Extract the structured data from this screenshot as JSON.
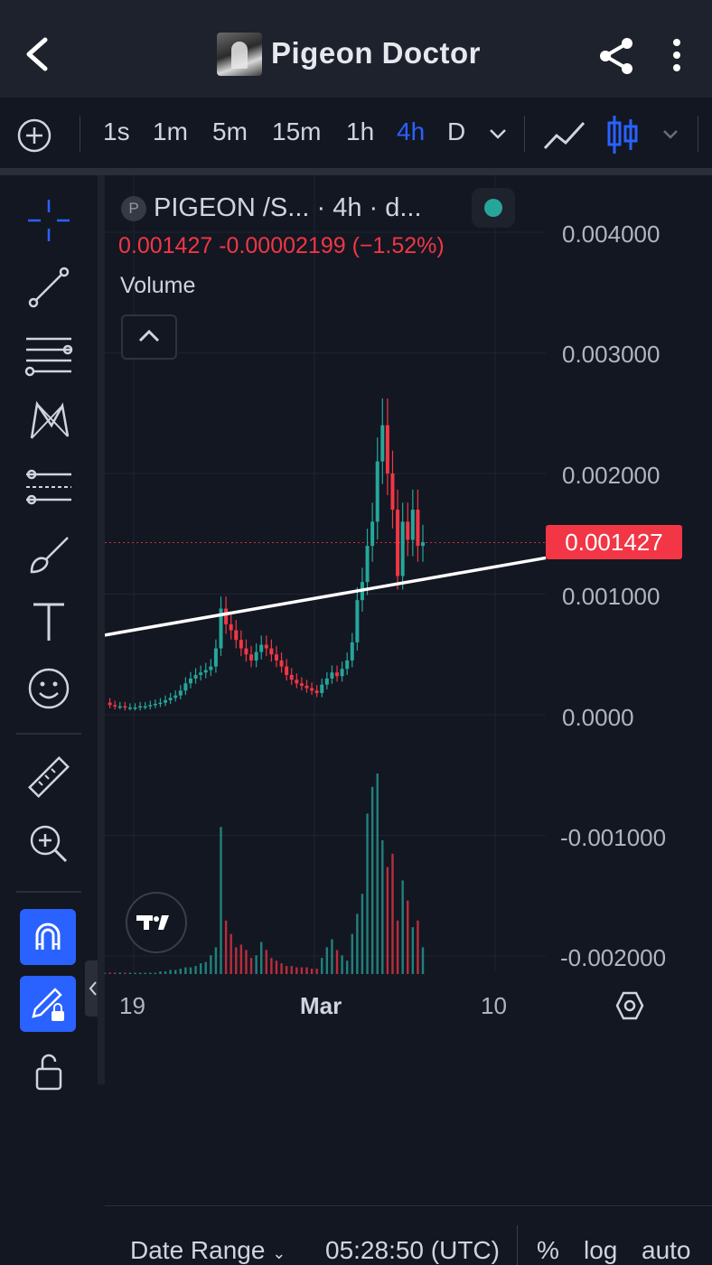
{
  "header": {
    "title": "Pigeon Doctor"
  },
  "toolbar": {
    "timeframes": [
      "1s",
      "1m",
      "5m",
      "15m",
      "1h",
      "4h",
      "D"
    ],
    "active_timeframe": "4h"
  },
  "legend": {
    "symbol_initial": "P",
    "symbol": "PIGEON /S... · 4h · d...",
    "ohlc": "0.001427  -0.00002199 (−1.52%)",
    "volume_label": "Volume"
  },
  "price_axis": {
    "ticks": [
      "0.004000",
      "0.003000",
      "0.002000",
      "0.001000",
      "0.0000",
      "-0.001000",
      "-0.002000"
    ],
    "last_price": "0.001427"
  },
  "time_axis": {
    "ticks": [
      "19",
      "Mar",
      "10"
    ]
  },
  "bottom_bar": {
    "date_range": "Date Range",
    "clock": "05:28:50 (UTC)",
    "percent": "%",
    "log": "log",
    "auto": "auto"
  },
  "colors": {
    "up": "#26a69a",
    "down": "#f23645",
    "accent": "#2962ff",
    "background": "#131722"
  },
  "chart_data": {
    "type": "candlestick",
    "ylim": [
      -0.0021,
      0.0043
    ],
    "y_ticks": [
      0.004,
      0.003,
      0.002,
      0.001,
      0.0,
      -0.001,
      -0.002
    ],
    "last_price": 0.001427,
    "price_path": [
      0.0001,
      8e-05,
      7e-05,
      7e-05,
      6e-05,
      6e-05,
      6e-05,
      7e-05,
      7e-05,
      8e-05,
      9e-05,
      0.0001,
      0.00012,
      0.00014,
      0.00016,
      0.0002,
      0.00026,
      0.0003,
      0.00033,
      0.00035,
      0.00037,
      0.0004,
      0.00055,
      0.00088,
      0.00075,
      0.0007,
      0.00062,
      0.00055,
      0.0005,
      0.00045,
      0.00052,
      0.00058,
      0.00055,
      0.0005,
      0.00045,
      0.0004,
      0.00033,
      0.00029,
      0.00026,
      0.00024,
      0.00022,
      0.0002,
      0.00018,
      0.00025,
      0.0003,
      0.00035,
      0.00032,
      0.00038,
      0.00045,
      0.0006,
      0.00095,
      0.0011,
      0.0014,
      0.0016,
      0.0021,
      0.0024,
      0.002,
      0.0017,
      0.00115,
      0.0016,
      0.00145,
      0.0017,
      0.0014,
      0.00143
    ],
    "volume_path": [
      1,
      1,
      1,
      1,
      1,
      1,
      1,
      1,
      1,
      1,
      1,
      2,
      2,
      3,
      3,
      4,
      5,
      5,
      6,
      8,
      9,
      14,
      20,
      110,
      40,
      30,
      20,
      22,
      18,
      12,
      14,
      24,
      18,
      12,
      10,
      8,
      6,
      6,
      5,
      5,
      5,
      4,
      4,
      12,
      20,
      26,
      18,
      14,
      10,
      30,
      45,
      60,
      120,
      140,
      150,
      100,
      80,
      90,
      40,
      70,
      55,
      35,
      40,
      20
    ],
    "trendline": [
      [
        0,
        0.00066
      ],
      [
        1,
        0.0013
      ]
    ]
  }
}
